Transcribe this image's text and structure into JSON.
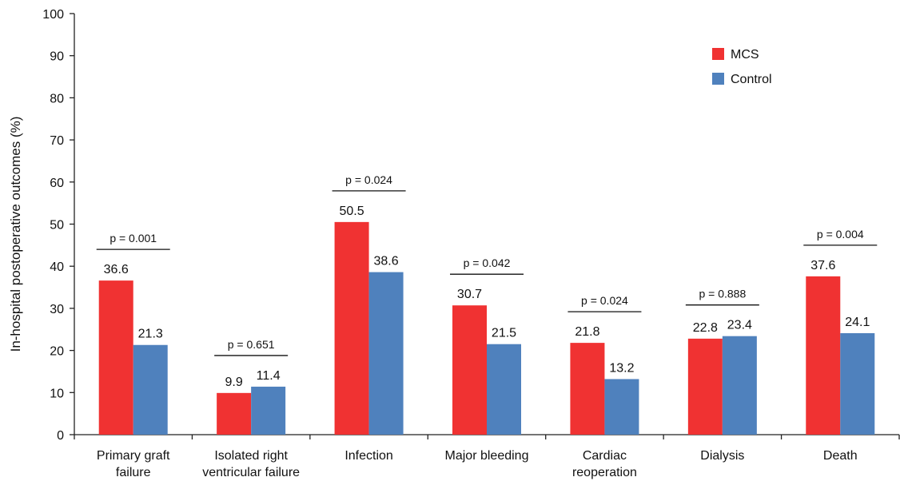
{
  "chart_data": {
    "type": "bar",
    "ylabel": "In-hospital postoperative outcomes (%)",
    "xlabel": "",
    "ylim": [
      0,
      100
    ],
    "yticks": [
      0,
      10,
      20,
      30,
      40,
      50,
      60,
      70,
      80,
      90,
      100
    ],
    "grid": false,
    "legend_position": "top-right",
    "categories": [
      [
        "Primary graft",
        "failure"
      ],
      [
        "Isolated right",
        "ventricular failure"
      ],
      [
        "Infection"
      ],
      [
        "Major bleeding"
      ],
      [
        "Cardiac",
        "reoperation"
      ],
      [
        "Dialysis"
      ],
      [
        "Death"
      ]
    ],
    "series": [
      {
        "name": "MCS",
        "color": "#f03232",
        "values": [
          36.6,
          9.9,
          50.5,
          30.7,
          21.8,
          22.8,
          37.6
        ],
        "labels": [
          "36.6",
          "9.9",
          "50.5",
          "30.7",
          "21.8",
          "22.8",
          "37.6"
        ]
      },
      {
        "name": "Control",
        "color": "#4f81bd",
        "values": [
          21.3,
          11.4,
          38.6,
          21.5,
          13.2,
          23.4,
          24.1
        ],
        "labels": [
          "21.3",
          "11.4",
          "38.6",
          "21.5",
          "13.2",
          "23.4",
          "24.1"
        ]
      }
    ],
    "p_values": [
      "p = 0.001",
      "p = 0.651",
      "p = 0.024",
      "p = 0.042",
      "p = 0.024",
      "p = 0.888",
      "p = 0.004"
    ]
  }
}
